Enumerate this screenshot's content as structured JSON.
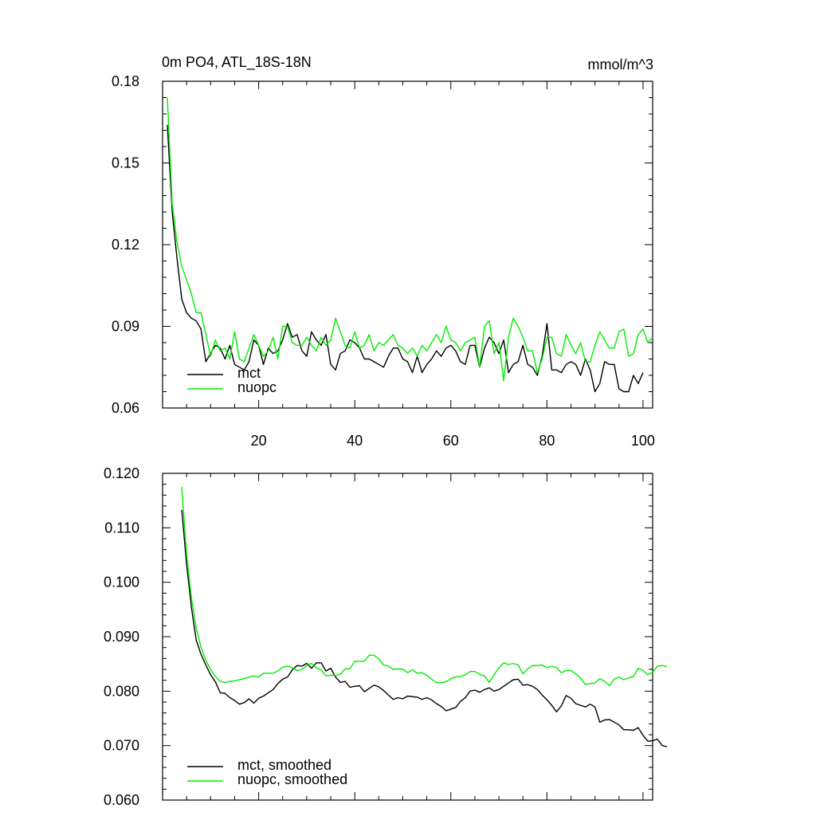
{
  "chart_data": [
    {
      "type": "line",
      "title": "0m PO4, ATL_18S-18N",
      "units": "mmol/m^3",
      "xlim": [
        0,
        102
      ],
      "ylim": [
        0.06,
        0.18
      ],
      "xticks": [
        20,
        40,
        60,
        80,
        100
      ],
      "yticks": [
        0.06,
        0.09,
        0.12,
        0.15,
        0.18
      ],
      "ytick_labels": [
        "0.06",
        "0.09",
        "0.12",
        "0.15",
        "0.18"
      ],
      "legend": "bottom-left",
      "series": [
        {
          "name": "mct",
          "color": "#000000",
          "x_start": 1,
          "values": [
            0.164,
            0.132,
            0.115,
            0.1,
            0.095,
            0.093,
            0.092,
            0.089,
            0.077,
            0.08,
            0.083,
            0.082,
            0.078,
            0.083,
            0.076,
            0.075,
            0.074,
            0.077,
            0.085,
            0.083,
            0.076,
            0.082,
            0.08,
            0.081,
            0.085,
            0.091,
            0.086,
            0.087,
            0.081,
            0.079,
            0.088,
            0.085,
            0.083,
            0.087,
            0.076,
            0.074,
            0.08,
            0.081,
            0.085,
            0.084,
            0.082,
            0.078,
            0.078,
            0.077,
            0.076,
            0.075,
            0.079,
            0.082,
            0.082,
            0.078,
            0.077,
            0.073,
            0.079,
            0.073,
            0.076,
            0.078,
            0.081,
            0.079,
            0.082,
            0.083,
            0.081,
            0.077,
            0.076,
            0.083,
            0.083,
            0.075,
            0.082,
            0.086,
            0.084,
            0.08,
            0.085,
            0.073,
            0.076,
            0.077,
            0.083,
            0.076,
            0.075,
            0.072,
            0.079,
            0.091,
            0.074,
            0.074,
            0.073,
            0.076,
            0.077,
            0.076,
            0.072,
            0.078,
            0.074,
            0.066,
            0.069,
            0.077,
            0.076,
            0.076,
            0.067,
            0.066,
            0.066,
            0.072,
            0.069,
            0.073
          ]
        },
        {
          "name": "nuopc",
          "color": "#00ee00",
          "x_start": 1,
          "values": [
            0.174,
            0.135,
            0.121,
            0.112,
            0.107,
            0.102,
            0.095,
            0.095,
            0.087,
            0.079,
            0.085,
            0.081,
            0.082,
            0.078,
            0.088,
            0.078,
            0.077,
            0.082,
            0.087,
            0.083,
            0.079,
            0.081,
            0.086,
            0.078,
            0.09,
            0.09,
            0.084,
            0.083,
            0.083,
            0.086,
            0.083,
            0.081,
            0.086,
            0.083,
            0.085,
            0.093,
            0.088,
            0.083,
            0.082,
            0.088,
            0.082,
            0.083,
            0.087,
            0.081,
            0.084,
            0.083,
            0.085,
            0.087,
            0.083,
            0.082,
            0.08,
            0.082,
            0.079,
            0.083,
            0.081,
            0.084,
            0.087,
            0.084,
            0.09,
            0.085,
            0.084,
            0.081,
            0.084,
            0.085,
            0.086,
            0.075,
            0.09,
            0.092,
            0.08,
            0.084,
            0.07,
            0.086,
            0.093,
            0.09,
            0.086,
            0.081,
            0.081,
            0.073,
            0.078,
            0.086,
            0.086,
            0.08,
            0.079,
            0.087,
            0.083,
            0.08,
            0.084,
            0.077,
            0.077,
            0.083,
            0.088,
            0.085,
            0.082,
            0.082,
            0.088,
            0.089,
            0.079,
            0.08,
            0.087,
            0.089,
            0.084,
            0.086
          ]
        }
      ]
    },
    {
      "type": "line",
      "title": "",
      "xlim": [
        0,
        102
      ],
      "ylim": [
        0.06,
        0.12
      ],
      "xticks": [
        20,
        40,
        60,
        80,
        100
      ],
      "yticks": [
        0.06,
        0.07,
        0.08,
        0.09,
        0.1,
        0.11,
        0.12
      ],
      "ytick_labels": [
        "0.060",
        "0.070",
        "0.080",
        "0.090",
        "0.100",
        "0.110",
        "0.120"
      ],
      "legend": "bottom-left",
      "series": [
        {
          "name": "mct, smoothed",
          "color": "#000000",
          "x_start": 4,
          "values": [
            0.1133,
            0.1034,
            0.0954,
            0.0894,
            0.0868,
            0.0848,
            0.083,
            0.0817,
            0.0797,
            0.0796,
            0.0788,
            0.0783,
            0.0776,
            0.0779,
            0.0786,
            0.0778,
            0.0787,
            0.0791,
            0.0797,
            0.0803,
            0.0814,
            0.0822,
            0.0826,
            0.0839,
            0.0847,
            0.0846,
            0.0851,
            0.0842,
            0.0852,
            0.0852,
            0.0837,
            0.0842,
            0.0826,
            0.0816,
            0.0818,
            0.0807,
            0.0809,
            0.081,
            0.0799,
            0.0805,
            0.0811,
            0.0808,
            0.0801,
            0.0793,
            0.0785,
            0.0788,
            0.0786,
            0.0791,
            0.079,
            0.0789,
            0.0785,
            0.0788,
            0.0784,
            0.0777,
            0.0772,
            0.0764,
            0.0767,
            0.077,
            0.0781,
            0.0788,
            0.08,
            0.0802,
            0.0798,
            0.0803,
            0.0806,
            0.08,
            0.0803,
            0.0809,
            0.0815,
            0.0821,
            0.0822,
            0.0811,
            0.0812,
            0.0809,
            0.0803,
            0.0793,
            0.0784,
            0.0774,
            0.0762,
            0.0773,
            0.0792,
            0.0787,
            0.0777,
            0.0774,
            0.0771,
            0.0776,
            0.0771,
            0.0743,
            0.0747,
            0.0748,
            0.0743,
            0.0738,
            0.0729,
            0.0729,
            0.0728,
            0.0733,
            0.0719,
            0.0708,
            0.0709,
            0.0712,
            0.07,
            0.0698
          ]
        },
        {
          "name": "nuopc, smoothed",
          "color": "#00ee00",
          "x_start": 4,
          "values": [
            0.1175,
            0.1052,
            0.0972,
            0.0916,
            0.0881,
            0.0857,
            0.084,
            0.0827,
            0.0818,
            0.0816,
            0.0818,
            0.0819,
            0.0821,
            0.0823,
            0.0826,
            0.0828,
            0.0826,
            0.0833,
            0.0833,
            0.0833,
            0.0837,
            0.0844,
            0.0846,
            0.0843,
            0.0838,
            0.084,
            0.0847,
            0.0851,
            0.0843,
            0.0839,
            0.0828,
            0.0829,
            0.0829,
            0.0831,
            0.0841,
            0.0841,
            0.0855,
            0.0855,
            0.0855,
            0.0866,
            0.0866,
            0.0859,
            0.0848,
            0.0846,
            0.084,
            0.0841,
            0.084,
            0.0834,
            0.0839,
            0.0833,
            0.0834,
            0.0829,
            0.0822,
            0.0816,
            0.0816,
            0.0817,
            0.0823,
            0.0826,
            0.0827,
            0.083,
            0.0836,
            0.0836,
            0.0831,
            0.0828,
            0.0816,
            0.083,
            0.0843,
            0.0852,
            0.0849,
            0.0851,
            0.0848,
            0.0832,
            0.0841,
            0.0847,
            0.0847,
            0.0848,
            0.0843,
            0.0846,
            0.0843,
            0.0834,
            0.0838,
            0.0838,
            0.0832,
            0.0824,
            0.0812,
            0.0814,
            0.0815,
            0.0823,
            0.0818,
            0.081,
            0.0822,
            0.0826,
            0.0821,
            0.0824,
            0.0827,
            0.0842,
            0.0838,
            0.083,
            0.0835,
            0.0846,
            0.0847,
            0.0845
          ]
        }
      ]
    }
  ]
}
